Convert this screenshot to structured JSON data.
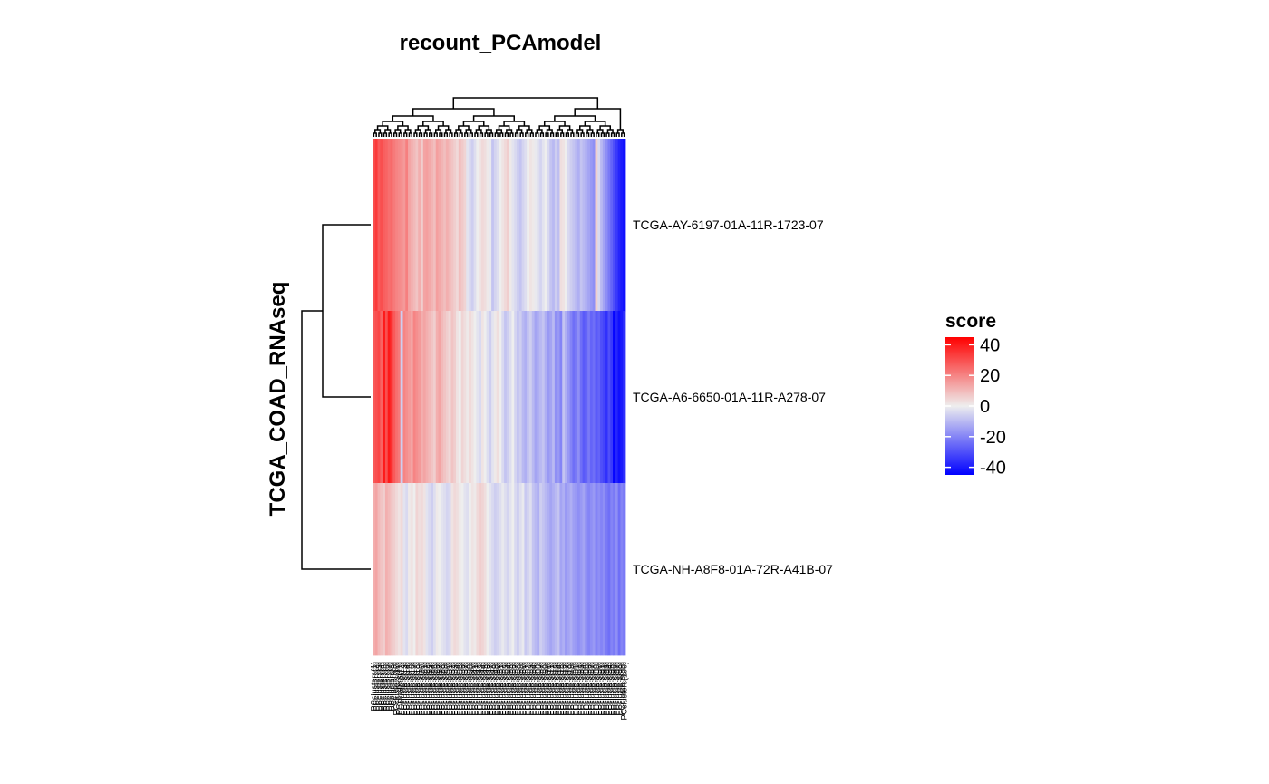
{
  "chart_data": {
    "type": "heatmap",
    "title": "recount_PCAmodel",
    "ylabel": "TCGA_COAD_RNAseq",
    "rows": [
      "TCGA-AY-6197-01A-11R-1723-07",
      "TCGA-A6-6650-01A-11R-A278-07",
      "TCGA-NH-A8F8-01A-72R-A41B-07"
    ],
    "column_count": 100,
    "column_labels": [
      "PCclusters(1)",
      "PCclusters(2)",
      "PCclusters(3)",
      "PCclusters(4)",
      "PCclusters(5)",
      "PCclusters(6)",
      "PCclusters(7)",
      "PCclusters(8)",
      "PCclusters(9)",
      "PCclusters(10)",
      "PCclusters(11)",
      "PCclusters(12)",
      "PCclusters(13)",
      "PCclusters(14)",
      "PCclusters(15)",
      "PCclusters(16)",
      "PCclusters(17)",
      "PCclusters(18)",
      "PCclusters(19)",
      "PCclusters(20)",
      "PCclusters(21)",
      "PCclusters(22)",
      "PCclusters(23)",
      "PCclusters(24)",
      "PCclusters(25)",
      "PCclusters(26)",
      "PCclusters(27)",
      "PCclusters(28)",
      "PCclusters(29)",
      "PCclusters(30)",
      "PCclusters(31)",
      "PCclusters(32)",
      "PCclusters(33)",
      "PCclusters(34)",
      "PCclusters(35)",
      "PCclusters(36)",
      "PCclusters(37)",
      "PCclusters(38)",
      "PCclusters(39)",
      "PCclusters(40)",
      "PCclusters(41)",
      "PCclusters(42)",
      "PCclusters(43)",
      "PCclusters(44)",
      "PCclusters(45)",
      "PCclusters(46)",
      "PCclusters(47)",
      "PCclusters(48)",
      "PCclusters(49)",
      "PCclusters(50)",
      "PCclusters(51)",
      "PCclusters(52)",
      "PCclusters(53)",
      "PCclusters(54)",
      "PCclusters(55)",
      "PCclusters(56)",
      "PCclusters(57)",
      "PCclusters(58)",
      "PCclusters(59)",
      "PCclusters(60)",
      "PCclusters(61)",
      "PCclusters(62)",
      "PCclusters(63)",
      "PCclusters(64)",
      "PCclusters(65)",
      "PCclusters(66)",
      "PCclusters(67)",
      "PCclusters(68)",
      "PCclusters(69)",
      "PCclusters(70)",
      "PCclusters(71)",
      "PCclusters(72)",
      "PCclusters(73)",
      "PCclusters(74)",
      "PCclusters(75)",
      "PCclusters(76)",
      "PCclusters(77)",
      "PCclusters(78)",
      "PCclusters(79)",
      "PCclusters(80)",
      "PCclusters(81)",
      "PCclusters(82)",
      "PCclusters(83)",
      "PCclusters(84)",
      "PCclusters(85)",
      "PCclusters(86)",
      "PCclusters(87)",
      "PCclusters(88)",
      "PCclusters(89)",
      "PCclusters(90)",
      "PCclusters(91)",
      "PCclusters(92)",
      "PCclusters(93)",
      "PCclusters(94)",
      "PCclusters(95)",
      "PCclusters(96)",
      "PCclusters(97)",
      "PCclusters(98)",
      "PCclusters(99)",
      "PCclusters(100)"
    ],
    "values": [
      [
        30,
        34,
        28,
        30,
        27,
        26,
        24,
        25,
        22,
        20,
        19,
        18,
        16,
        21,
        14,
        12,
        10,
        8,
        12,
        6,
        14,
        15,
        13,
        11,
        9,
        15,
        13,
        11,
        9,
        12,
        10,
        8,
        6,
        4,
        9,
        7,
        5,
        -2,
        -4,
        -6,
        -3,
        0,
        2,
        4,
        3,
        1,
        -1,
        -8,
        -5,
        -3,
        0,
        2,
        4,
        6,
        1,
        -2,
        -4,
        -6,
        -8,
        -5,
        -3,
        0,
        2,
        1,
        -1,
        -3,
        -5,
        -2,
        0,
        -4,
        -8,
        -10,
        -6,
        -9,
        3,
        2,
        0,
        -4,
        -6,
        -8,
        -10,
        -12,
        -8,
        -10,
        -12,
        -14,
        -16,
        -18,
        6,
        -4,
        -10,
        -14,
        -18,
        -22,
        -26,
        -30,
        -34,
        -38,
        -40,
        -42
      ],
      [
        28,
        30,
        32,
        26,
        40,
        30,
        40,
        36,
        28,
        24,
        22,
        -6,
        20,
        18,
        16,
        14,
        20,
        18,
        16,
        12,
        14,
        12,
        10,
        8,
        6,
        12,
        14,
        10,
        8,
        6,
        4,
        8,
        6,
        2,
        0,
        5,
        3,
        1,
        4,
        2,
        0,
        -2,
        -4,
        2,
        0,
        -3,
        -6,
        -2,
        1,
        3,
        0,
        -4,
        -8,
        -6,
        -3,
        0,
        -5,
        -8,
        -6,
        -10,
        -12,
        -8,
        -6,
        -10,
        -14,
        -12,
        -10,
        -8,
        -12,
        -16,
        -14,
        -10,
        -18,
        -16,
        -20,
        -8,
        -12,
        -16,
        -20,
        -24,
        -22,
        -18,
        -24,
        -28,
        -26,
        -22,
        -26,
        -24,
        -28,
        -26,
        -30,
        -32,
        -36,
        -30,
        -34,
        -44,
        -38,
        -42,
        -40,
        -36
      ],
      [
        12,
        14,
        10,
        8,
        6,
        12,
        10,
        8,
        6,
        4,
        2,
        4,
        -2,
        -4,
        1,
        2,
        0,
        5,
        3,
        4,
        2,
        -2,
        -4,
        -6,
        -3,
        1,
        0,
        -2,
        -3,
        -5,
        -4,
        2,
        4,
        3,
        1,
        0,
        -2,
        -3,
        0,
        2,
        1,
        4,
        6,
        5,
        3,
        0,
        -2,
        -4,
        -6,
        -5,
        -3,
        -1,
        -3,
        -5,
        -2,
        0,
        -4,
        -6,
        -3,
        -1,
        -7,
        -5,
        -3,
        -8,
        -10,
        -12,
        -6,
        -8,
        -10,
        -12,
        -14,
        -12,
        -10,
        -8,
        -14,
        -12,
        -16,
        -14,
        -12,
        -15,
        -16,
        -18,
        -16,
        -14,
        -18,
        -20,
        -18,
        -16,
        -20,
        -18,
        -20,
        -18,
        -22,
        -24,
        -20,
        -22,
        -18,
        -24,
        -20,
        -22
      ]
    ],
    "legend": {
      "title": "score",
      "ticks": [
        "40",
        "20",
        "0",
        "-20",
        "-40"
      ],
      "range": [
        -45,
        45
      ],
      "colors": {
        "high": "#FF0000",
        "mid": "#EEEEEE",
        "low": "#0000FF"
      },
      "placement": "right"
    },
    "row_dendrogram": true,
    "column_dendrogram": true
  }
}
